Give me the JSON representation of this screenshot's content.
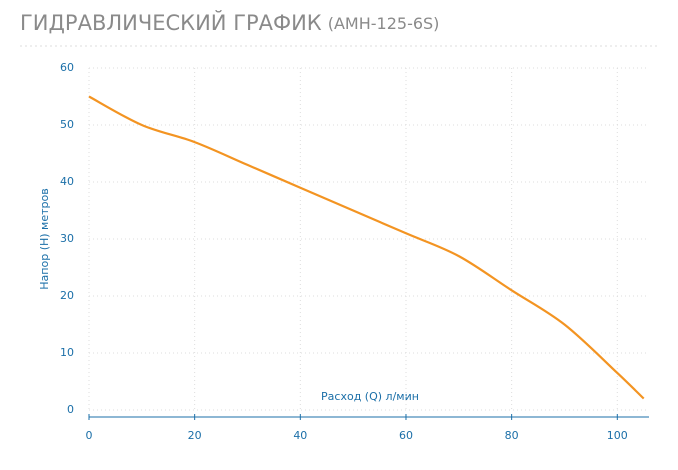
{
  "chart_data": {
    "type": "line",
    "title": "ГИДРАВЛИЧЕСКИЙ ГРАФИК",
    "subtitle": "(АМН-125-6S)",
    "x_label": "Расход (Q) л/мин",
    "y_label": "Напор (H) метров",
    "x": [
      0,
      10,
      20,
      30,
      40,
      50,
      60,
      70,
      80,
      90,
      100,
      105
    ],
    "series": [
      {
        "name": "АМН-125-6S",
        "color": "#f39422",
        "values": [
          55,
          50,
          47,
          43,
          39,
          35,
          31,
          27,
          21,
          15,
          6.5,
          2
        ]
      }
    ],
    "xlim": [
      0,
      106
    ],
    "xticks": [
      0,
      20,
      40,
      60,
      80,
      100
    ],
    "ylim": [
      0,
      60
    ],
    "yticks": [
      0,
      10,
      20,
      30,
      40,
      50,
      60
    ],
    "grid": true
  }
}
